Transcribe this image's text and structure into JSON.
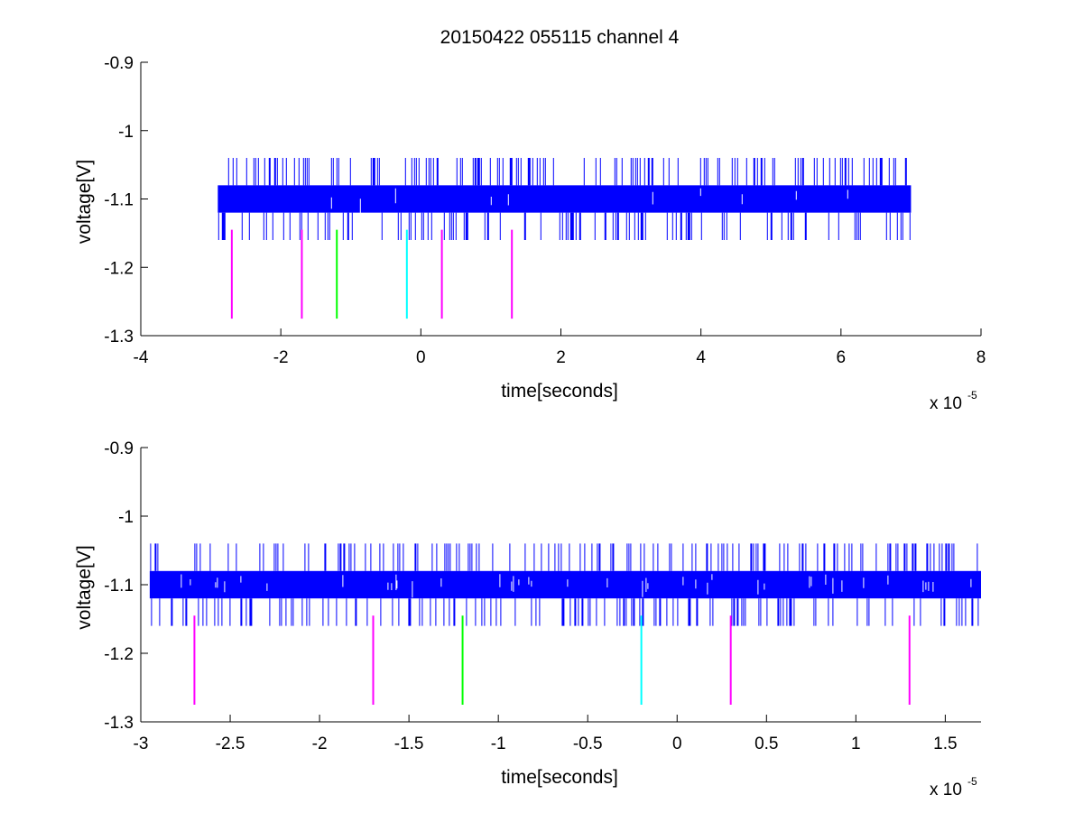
{
  "chart_data": [
    {
      "type": "line",
      "title": "20150422 055115 channel 4",
      "xlabel": "time[seconds]",
      "ylabel": "voltage[V]",
      "x_exponent_label": "x 10",
      "x_exponent_power": "-5",
      "xlim": [
        -4,
        8
      ],
      "ylim": [
        -1.3,
        -0.9
      ],
      "xticks": [
        -4,
        -2,
        0,
        2,
        4,
        6,
        8
      ],
      "xtick_labels": [
        "-4",
        "-2",
        "0",
        "2",
        "4",
        "6",
        "8"
      ],
      "yticks": [
        -0.9,
        -1,
        -1.1,
        -1.2,
        -1.3
      ],
      "ytick_labels": [
        "-0.9",
        "-1",
        "-1.1",
        "-1.2",
        "-1.3"
      ],
      "grid": false,
      "legend": "none",
      "series": [
        {
          "color": "#0000ff",
          "kind": "noisy-band",
          "x_start": -2.9,
          "x_end": 7.0,
          "band_low": -1.12,
          "band_high": -1.08,
          "spike_high": -1.04,
          "spike_low": -1.16
        }
      ],
      "markers": [
        {
          "x": -2.7,
          "y_top": -1.145,
          "y_bottom": -1.275,
          "color": "#ff00ff"
        },
        {
          "x": -1.7,
          "y_top": -1.145,
          "y_bottom": -1.275,
          "color": "#ff00ff"
        },
        {
          "x": -1.2,
          "y_top": -1.145,
          "y_bottom": -1.275,
          "color": "#00ff00"
        },
        {
          "x": -0.2,
          "y_top": -1.145,
          "y_bottom": -1.275,
          "color": "#00ffff"
        },
        {
          "x": 0.3,
          "y_top": -1.145,
          "y_bottom": -1.275,
          "color": "#ff00ff"
        },
        {
          "x": 1.3,
          "y_top": -1.145,
          "y_bottom": -1.275,
          "color": "#ff00ff"
        }
      ]
    },
    {
      "type": "line",
      "title": "",
      "xlabel": "time[seconds]",
      "ylabel": "voltage[V]",
      "x_exponent_label": "x 10",
      "x_exponent_power": "-5",
      "xlim": [
        -3.0,
        1.7
      ],
      "ylim": [
        -1.3,
        -0.9
      ],
      "xticks": [
        -3,
        -2.5,
        -2,
        -1.5,
        -1,
        -0.5,
        0,
        0.5,
        1,
        1.5
      ],
      "xtick_labels": [
        "-3",
        "-2.5",
        "-2",
        "-1.5",
        "-1",
        "-0.5",
        "0",
        "0.5",
        "1",
        "1.5"
      ],
      "yticks": [
        -0.9,
        -1,
        -1.1,
        -1.2,
        -1.3
      ],
      "ytick_labels": [
        "-0.9",
        "-1",
        "-1.1",
        "-1.2",
        "-1.3"
      ],
      "grid": false,
      "legend": "none",
      "series": [
        {
          "color": "#0000ff",
          "kind": "noisy-band",
          "x_start": -2.95,
          "x_end": 1.7,
          "band_low": -1.12,
          "band_high": -1.08,
          "spike_high": -1.04,
          "spike_low": -1.16
        }
      ],
      "markers": [
        {
          "x": -2.7,
          "y_top": -1.145,
          "y_bottom": -1.275,
          "color": "#ff00ff"
        },
        {
          "x": -1.7,
          "y_top": -1.145,
          "y_bottom": -1.275,
          "color": "#ff00ff"
        },
        {
          "x": -1.2,
          "y_top": -1.145,
          "y_bottom": -1.275,
          "color": "#00ff00"
        },
        {
          "x": -0.2,
          "y_top": -1.145,
          "y_bottom": -1.275,
          "color": "#00ffff"
        },
        {
          "x": 0.3,
          "y_top": -1.145,
          "y_bottom": -1.275,
          "color": "#ff00ff"
        },
        {
          "x": 1.3,
          "y_top": -1.145,
          "y_bottom": -1.275,
          "color": "#ff00ff"
        }
      ]
    }
  ]
}
